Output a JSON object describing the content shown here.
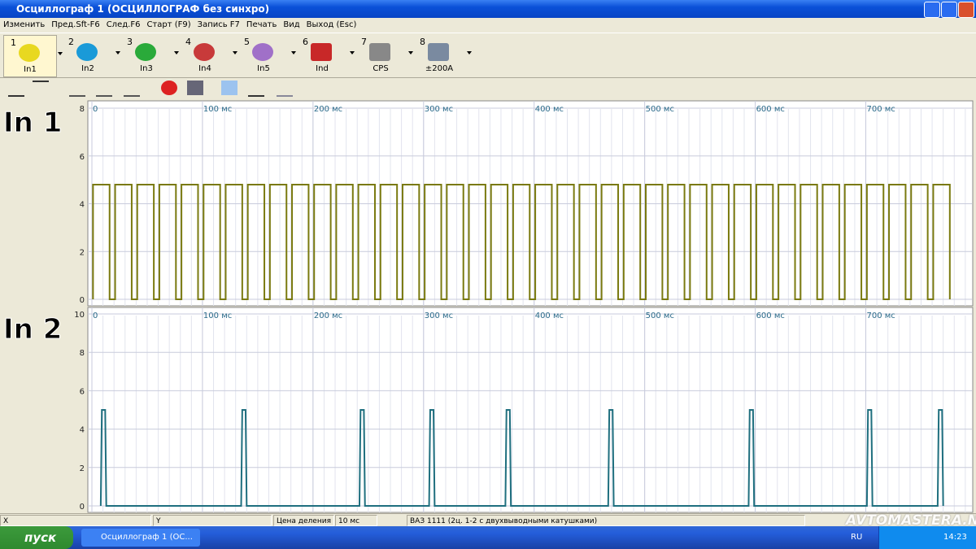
{
  "window": {
    "title": "Осциллограф 1 (ОСЦИЛЛОГРАФ без синхро)"
  },
  "menu": [
    "Изменить",
    "Пред.Sft-F6",
    "След.F6",
    "Старт (F9)",
    "Запись F7",
    "Печать",
    "Вид",
    "Выход (Esc)"
  ],
  "channels": [
    {
      "number": 1,
      "label": "In1"
    },
    {
      "number": 2,
      "label": "In2"
    },
    {
      "number": 3,
      "label": "In3"
    },
    {
      "number": 4,
      "label": "In4"
    },
    {
      "number": 5,
      "label": "In5"
    },
    {
      "number": 6,
      "label": "Ind"
    },
    {
      "number": 7,
      "label": "CPS"
    },
    {
      "number": 8,
      "label": "±200A"
    }
  ],
  "chart_data": [
    {
      "type": "line",
      "title": "In 1",
      "color": "#7a7a10",
      "x": [
        1,
        1,
        16,
        16,
        21,
        21,
        36,
        36,
        41,
        41,
        56,
        56,
        61,
        61,
        76,
        76,
        81,
        81,
        96,
        96,
        101,
        101,
        116,
        116,
        121,
        121,
        136,
        136,
        141,
        141,
        156,
        156,
        161,
        161,
        176,
        176,
        181,
        181,
        196,
        196,
        201,
        201,
        216,
        216,
        221,
        221,
        236,
        236,
        241,
        241,
        256,
        256,
        261,
        261,
        276,
        276,
        281,
        281,
        296,
        296,
        301,
        301,
        316,
        316,
        321,
        321,
        336,
        336,
        341,
        341,
        356,
        356,
        361,
        361,
        376,
        376,
        381,
        381,
        396,
        396,
        401,
        401,
        416,
        416,
        421,
        421,
        436,
        436,
        441,
        441,
        456,
        456,
        461,
        461,
        476,
        476,
        481,
        481,
        496,
        496,
        501,
        501,
        516,
        516,
        521,
        521,
        536,
        536,
        541,
        541,
        556,
        556,
        561,
        561,
        576,
        576,
        581,
        581,
        596,
        596,
        601,
        601,
        616,
        616,
        621,
        621,
        636,
        636,
        641,
        641,
        656,
        656,
        661,
        661,
        676,
        676,
        681,
        681,
        696,
        696,
        701,
        701,
        716,
        716,
        721,
        721,
        736,
        736,
        741,
        741,
        756,
        756,
        761,
        761,
        776,
        776
      ],
      "values": [
        0,
        4.8,
        4.8,
        0,
        0,
        4.8,
        4.8,
        0,
        0,
        4.8,
        4.8,
        0,
        0,
        4.8,
        4.8,
        0,
        0,
        4.8,
        4.8,
        0,
        0,
        4.8,
        4.8,
        0,
        0,
        4.8,
        4.8,
        0,
        0,
        4.8,
        4.8,
        0,
        0,
        4.8,
        4.8,
        0,
        0,
        4.8,
        4.8,
        0,
        0,
        4.8,
        4.8,
        0,
        0,
        4.8,
        4.8,
        0,
        0,
        4.8,
        4.8,
        0,
        0,
        4.8,
        4.8,
        0,
        0,
        4.8,
        4.8,
        0,
        0,
        4.8,
        4.8,
        0,
        0,
        4.8,
        4.8,
        0,
        0,
        4.8,
        4.8,
        0,
        0,
        4.8,
        4.8,
        0,
        0,
        4.8,
        4.8,
        0,
        0,
        4.8,
        4.8,
        0,
        0,
        4.8,
        4.8,
        0,
        0,
        4.8,
        4.8,
        0,
        0,
        4.8,
        4.8,
        0,
        0,
        4.8,
        4.8,
        0,
        0,
        4.8,
        4.8,
        0,
        0,
        4.8,
        4.8,
        0,
        0,
        4.8,
        4.8,
        0,
        0,
        4.8,
        4.8,
        0,
        0,
        4.8,
        4.8,
        0,
        0,
        4.8,
        4.8,
        0,
        0,
        4.8,
        4.8,
        0,
        0,
        4.8,
        4.8,
        0,
        0,
        4.8,
        4.8,
        0,
        0,
        4.8,
        4.8,
        0,
        0,
        4.8,
        4.8,
        0,
        0,
        4.8,
        4.8,
        0,
        0,
        4.8,
        4.8,
        0,
        0,
        4.8,
        4.8,
        0
      ],
      "xlim": [
        0,
        796
      ],
      "ylim": [
        0,
        8
      ],
      "xticks": [
        0,
        {
          "value": 100,
          "label": "100 мс"
        },
        {
          "value": 200,
          "label": "200 мс"
        },
        {
          "value": 300,
          "label": "300 мс"
        },
        {
          "value": 400,
          "label": "400 мс"
        },
        {
          "value": 500,
          "label": "500 мс"
        },
        {
          "value": 600,
          "label": "600 мс"
        },
        {
          "value": 700,
          "label": "700 мс"
        }
      ],
      "yticks": [
        0,
        2,
        4,
        6,
        8
      ],
      "grid": true
    },
    {
      "type": "line",
      "title": "In 2",
      "color": "#1f6f7f",
      "x": [
        8,
        9,
        12,
        13,
        135,
        136,
        139,
        140,
        242,
        243,
        246,
        247,
        305,
        306,
        309,
        310,
        374,
        375,
        378,
        379,
        467,
        468,
        471,
        472,
        594,
        595,
        598,
        599,
        701,
        702,
        705,
        706,
        765,
        766,
        769,
        770
      ],
      "values": [
        0,
        5,
        5,
        0,
        0,
        5,
        5,
        0,
        0,
        5,
        5,
        0,
        0,
        5,
        5,
        0,
        0,
        5,
        5,
        0,
        0,
        5,
        5,
        0,
        0,
        5,
        5,
        0,
        0,
        5,
        5,
        0,
        0,
        5,
        5,
        0
      ],
      "xlim": [
        0,
        796
      ],
      "ylim": [
        0,
        10
      ],
      "xticks": [
        0,
        {
          "value": 100,
          "label": "100 мс"
        },
        {
          "value": 200,
          "label": "200 мс"
        },
        {
          "value": 300,
          "label": "300 мс"
        },
        {
          "value": 400,
          "label": "400 мс"
        },
        {
          "value": 500,
          "label": "500 мс"
        },
        {
          "value": 600,
          "label": "600 мс"
        },
        {
          "value": 700,
          "label": "700 мс"
        }
      ],
      "yticks": [
        0,
        2,
        4,
        6,
        8,
        10
      ],
      "grid": true
    }
  ],
  "status_bar": {
    "x": "X",
    "y": "Y",
    "scale_label": "Цена деления",
    "scale_value": "10 мс",
    "vehicle": "ВАЗ 1111 (2ц. 1-2 с двухвыводными катушками)"
  },
  "taskbar": {
    "start": "пуск",
    "task": "Осциллограф 1 (ОС...",
    "lang": "RU",
    "clock": "14:23"
  },
  "watermark": "AVTOMASTERA.NET"
}
